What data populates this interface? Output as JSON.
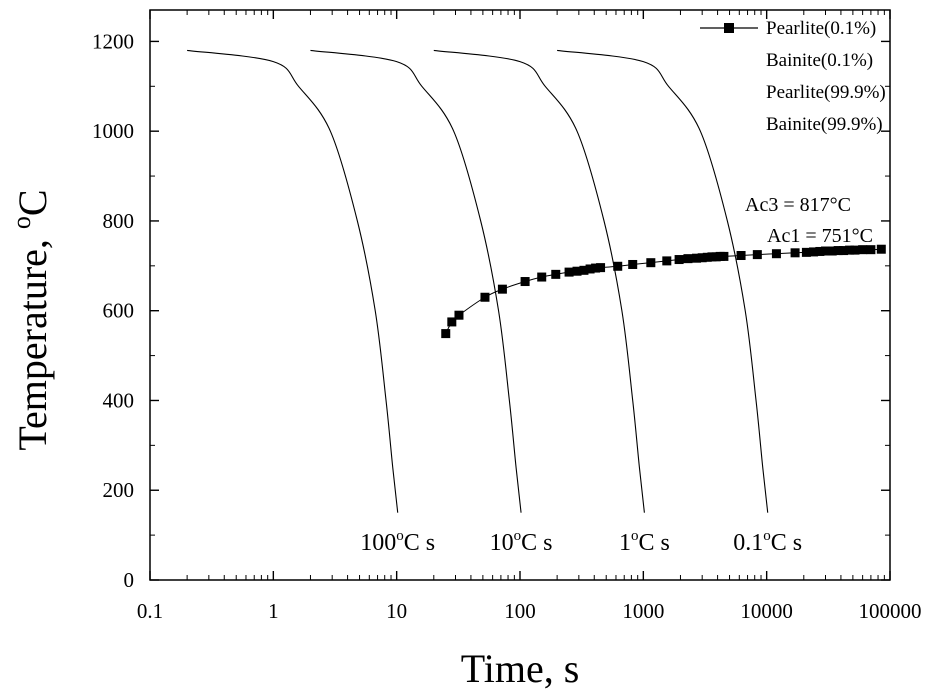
{
  "chart_data": {
    "type": "line",
    "xscale": "log",
    "xlim": [
      0.1,
      100000
    ],
    "ylim": [
      0,
      1270
    ],
    "xlabel": "Time, s",
    "ylabel": {
      "main": "Temperature, ",
      "sup": "o",
      "unit": "C"
    },
    "x_ticks": [
      0.1,
      1,
      10,
      100,
      1000,
      10000,
      100000
    ],
    "x_tick_labels": [
      "0.1",
      "1",
      "10",
      "100",
      "1000",
      "10000",
      "100000"
    ],
    "y_ticks": [
      0,
      200,
      400,
      600,
      800,
      1000,
      1200
    ],
    "y_tick_labels": [
      "0",
      "200",
      "400",
      "600",
      "800",
      "1000",
      "1200"
    ],
    "legend": [
      {
        "label": "Pearlite(0.1%)",
        "marker": "square",
        "line": true
      },
      {
        "label": "Bainite(0.1%)",
        "marker": "none",
        "line": false
      },
      {
        "label": "Pearlite(99.9%)",
        "marker": "none",
        "line": false
      },
      {
        "label": "Bainite(99.9%)",
        "marker": "none",
        "line": false
      }
    ],
    "annotations": {
      "ac3": "Ac3 = 817°C",
      "ac1": "Ac1 = 751°C"
    },
    "series": [
      {
        "name": "Pearlite(0.1%)",
        "marker": "square",
        "x": [
          25,
          28,
          32,
          52,
          72,
          110,
          150,
          195,
          250,
          290,
          330,
          370,
          410,
          450,
          620,
          820,
          1150,
          1550,
          1950,
          2300,
          2700,
          3000,
          3300,
          3600,
          3900,
          4200,
          4500,
          6200,
          8400,
          12000,
          17000,
          21000,
          24000,
          27000,
          30000,
          34000,
          38000,
          42000,
          47000,
          52000,
          60000,
          70000,
          85000
        ],
        "y": [
          549,
          575,
          590,
          630,
          648,
          665,
          675,
          681,
          686,
          688,
          690,
          693,
          695,
          696,
          699,
          703,
          707,
          711,
          714,
          716,
          717,
          718,
          719,
          720,
          720,
          721,
          721,
          723,
          725,
          727,
          729,
          730,
          731,
          732,
          733,
          733,
          734,
          734,
          735,
          735,
          736,
          736,
          737
        ]
      }
    ],
    "cooling_curves": [
      {
        "name": "100°C/s",
        "label_main": "100",
        "label_unit": "C s",
        "x": [
          0.2,
          1.0,
          1.6,
          2.9,
          4.8,
          6.7,
          8.2,
          9.3,
          10.2
        ],
        "y": [
          1180,
          1155,
          1100,
          1000,
          800,
          600,
          400,
          250,
          150
        ]
      },
      {
        "name": "10°C/s",
        "label_main": "10",
        "label_unit": "C s",
        "x": [
          2.0,
          10,
          16,
          29,
          48,
          67,
          82,
          93,
          102
        ],
        "y": [
          1180,
          1155,
          1100,
          1000,
          800,
          600,
          400,
          250,
          150
        ]
      },
      {
        "name": "1°C/s",
        "label_main": "1",
        "label_unit": "C s",
        "x": [
          20,
          100,
          160,
          290,
          480,
          670,
          820,
          930,
          1020
        ],
        "y": [
          1180,
          1155,
          1100,
          1000,
          800,
          600,
          400,
          250,
          150
        ]
      },
      {
        "name": "0.1°C/s",
        "label_main": "0.1",
        "label_unit": "C s",
        "x": [
          200,
          1000,
          1600,
          2900,
          4800,
          6700,
          8200,
          9300,
          10200
        ],
        "y": [
          1180,
          1155,
          1100,
          1000,
          800,
          600,
          400,
          250,
          150
        ]
      }
    ]
  }
}
